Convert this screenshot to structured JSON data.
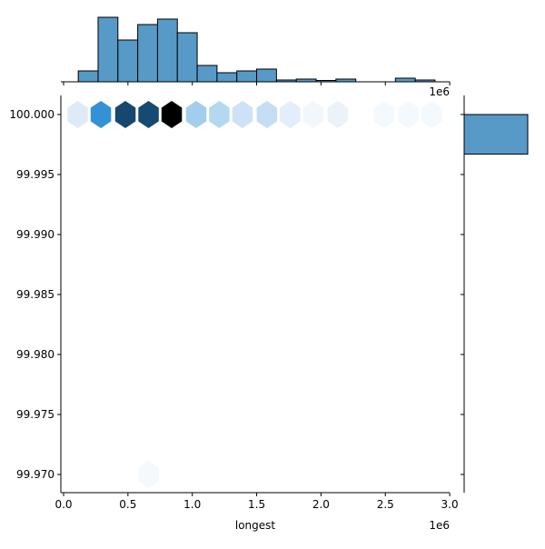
{
  "chart_data": {
    "type": "hexbin-joint",
    "xlabel": "longest",
    "ylabel": "",
    "x_offset_label": "1e6",
    "top_offset_label": "1e6",
    "xlim": [
      -0.02,
      3.03
    ],
    "ylim": [
      99.9687,
      100.0015
    ],
    "x_ticks": [
      0.0,
      0.5,
      1.0,
      1.5,
      2.0,
      2.5,
      3.0
    ],
    "x_tick_labels": [
      "0.0",
      "0.5",
      "1.0",
      "1.5",
      "2.0",
      "2.5",
      "3.0"
    ],
    "y_ticks": [
      100.0,
      99.995,
      99.99,
      99.985,
      99.98,
      99.975,
      99.97
    ],
    "y_tick_labels": [
      "100.000",
      "99.995",
      "99.990",
      "99.985",
      "99.980",
      "99.975",
      "99.970"
    ],
    "hex_color": "#1f77b4",
    "hexbins": [
      {
        "x": 0.11,
        "y": 100.0,
        "color": "#deebf7"
      },
      {
        "x": 0.29,
        "y": 100.0,
        "color": "#3392d6"
      },
      {
        "x": 0.48,
        "y": 100.0,
        "color": "#16476e"
      },
      {
        "x": 0.66,
        "y": 100.0,
        "color": "#174a72"
      },
      {
        "x": 0.84,
        "y": 100.0,
        "color": "#000000"
      },
      {
        "x": 1.03,
        "y": 100.0,
        "color": "#a2cdec"
      },
      {
        "x": 1.21,
        "y": 100.0,
        "color": "#b5d8f1"
      },
      {
        "x": 1.39,
        "y": 100.0,
        "color": "#cde3f5"
      },
      {
        "x": 1.58,
        "y": 100.0,
        "color": "#c5def3"
      },
      {
        "x": 1.76,
        "y": 100.0,
        "color": "#e2eef9"
      },
      {
        "x": 1.94,
        "y": 100.0,
        "color": "#f2f7fc"
      },
      {
        "x": 2.13,
        "y": 100.0,
        "color": "#ebf2f9"
      },
      {
        "x": 2.49,
        "y": 100.0,
        "color": "#f4f9fd"
      },
      {
        "x": 2.68,
        "y": 100.0,
        "color": "#f4f9fd"
      },
      {
        "x": 2.86,
        "y": 100.0,
        "color": "#f4f9fd"
      },
      {
        "x": 0.66,
        "y": 99.97,
        "color": "#f4f9fd"
      }
    ],
    "x_marginal_hist": {
      "bin_start": 0.114,
      "bin_width": 0.154,
      "counts": [
        12,
        71,
        46,
        63,
        69,
        54,
        18,
        10,
        12,
        14,
        2,
        3,
        1,
        3,
        0,
        0,
        4,
        2
      ]
    },
    "y_marginal_hist": {
      "bins": [
        {
          "y_low": 99.9967,
          "y_high": 100.0,
          "count": 1
        }
      ]
    }
  }
}
